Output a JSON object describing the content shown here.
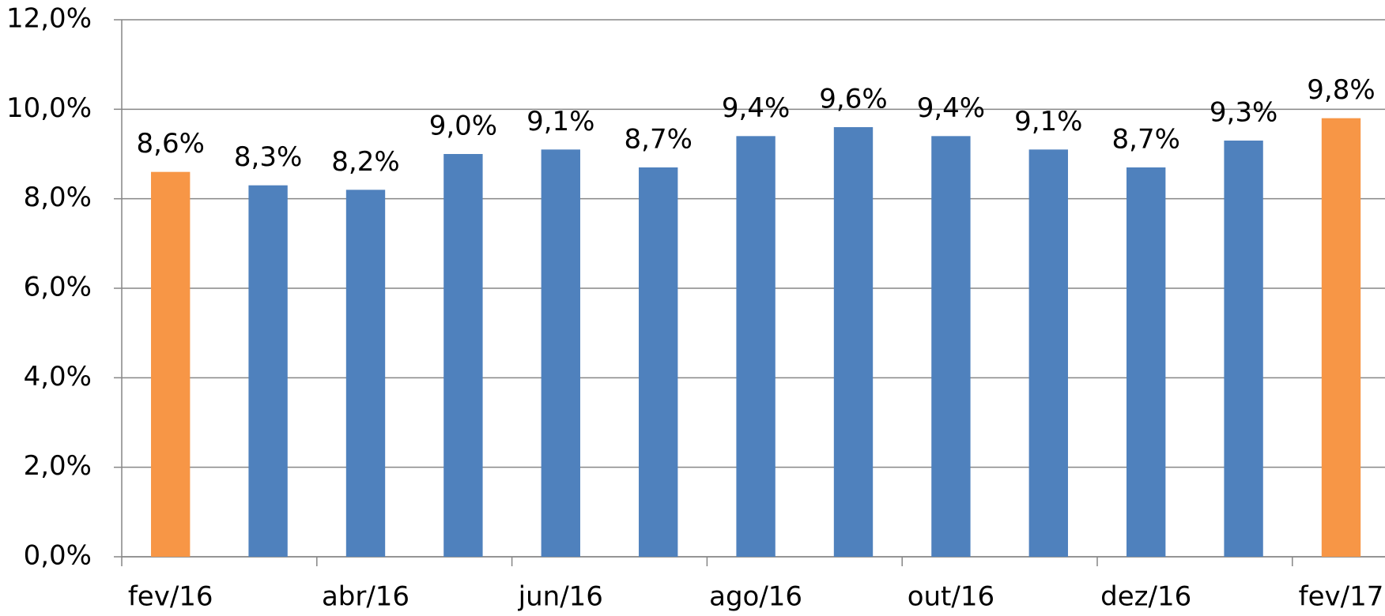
{
  "chart_data": {
    "type": "bar",
    "categories": [
      "fev/16",
      null,
      "abr/16",
      null,
      "jun/16",
      null,
      "ago/16",
      null,
      "out/16",
      null,
      "dez/16",
      null,
      "fev/17"
    ],
    "values": [
      8.6,
      8.3,
      8.2,
      9.0,
      9.1,
      8.7,
      9.4,
      9.6,
      9.4,
      9.1,
      8.7,
      9.3,
      9.8
    ],
    "value_labels": [
      "8,6%",
      "8,3%",
      "8,2%",
      "9,0%",
      "9,1%",
      "8,7%",
      "9,4%",
      "9,6%",
      "9,4%",
      "9,1%",
      "8,7%",
      "9,3%",
      "9,8%"
    ],
    "colors": [
      "#f79646",
      "#4f81bd",
      "#4f81bd",
      "#4f81bd",
      "#4f81bd",
      "#4f81bd",
      "#4f81bd",
      "#4f81bd",
      "#4f81bd",
      "#4f81bd",
      "#4f81bd",
      "#4f81bd",
      "#f79646"
    ],
    "ylim": [
      0,
      12
    ],
    "yticks": [
      {
        "value": 0,
        "label": "0,0%"
      },
      {
        "value": 2,
        "label": "2,0%"
      },
      {
        "value": 4,
        "label": "4,0%"
      },
      {
        "value": 6,
        "label": "6,0%"
      },
      {
        "value": 8,
        "label": "8,0%"
      },
      {
        "value": 10,
        "label": "10,0%"
      },
      {
        "value": 12,
        "label": "12,0%"
      }
    ],
    "grid": true
  }
}
